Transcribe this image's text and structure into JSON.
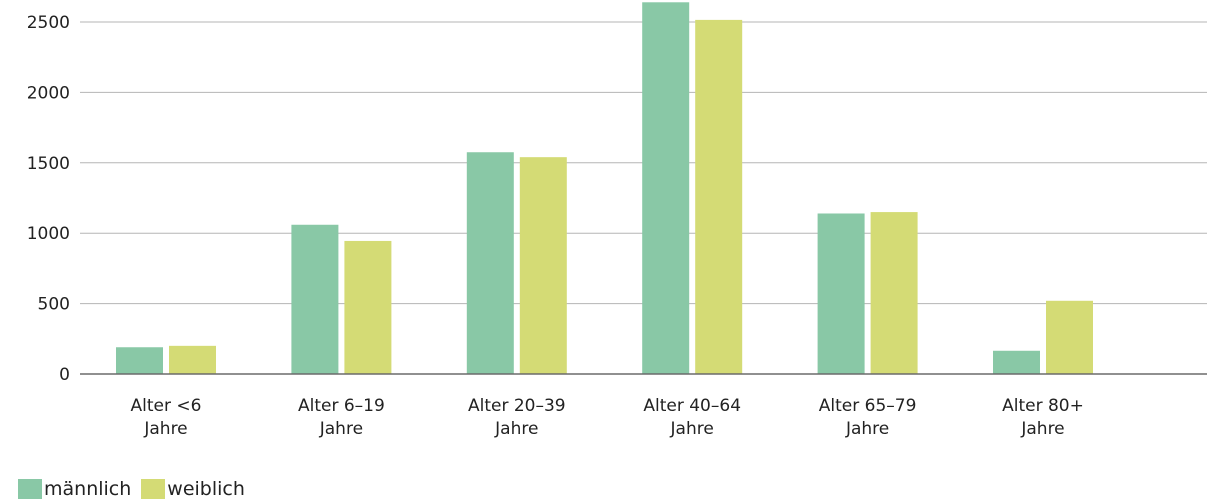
{
  "chart_data": {
    "type": "bar",
    "title": "",
    "xlabel": "",
    "ylabel": "",
    "categories": [
      [
        "Alter <6",
        "Jahre"
      ],
      [
        "Alter 6–19",
        "Jahre"
      ],
      [
        "Alter 20–39",
        "Jahre"
      ],
      [
        "Alter 40–64",
        "Jahre"
      ],
      [
        "Alter 65–79",
        "Jahre"
      ],
      [
        "Alter 80+",
        "Jahre"
      ]
    ],
    "series": [
      {
        "name": "männlich",
        "color": "#89c8a6",
        "values": [
          190,
          1060,
          1575,
          2640,
          1140,
          165
        ]
      },
      {
        "name": "weiblich",
        "color": "#d4db75",
        "values": [
          200,
          945,
          1540,
          2515,
          1150,
          520
        ]
      }
    ],
    "yticks": [
      0,
      500,
      1000,
      1500,
      2000,
      2500
    ],
    "ylim": [
      0,
      2540
    ],
    "grid": true,
    "legend_position": "bottom-left"
  }
}
